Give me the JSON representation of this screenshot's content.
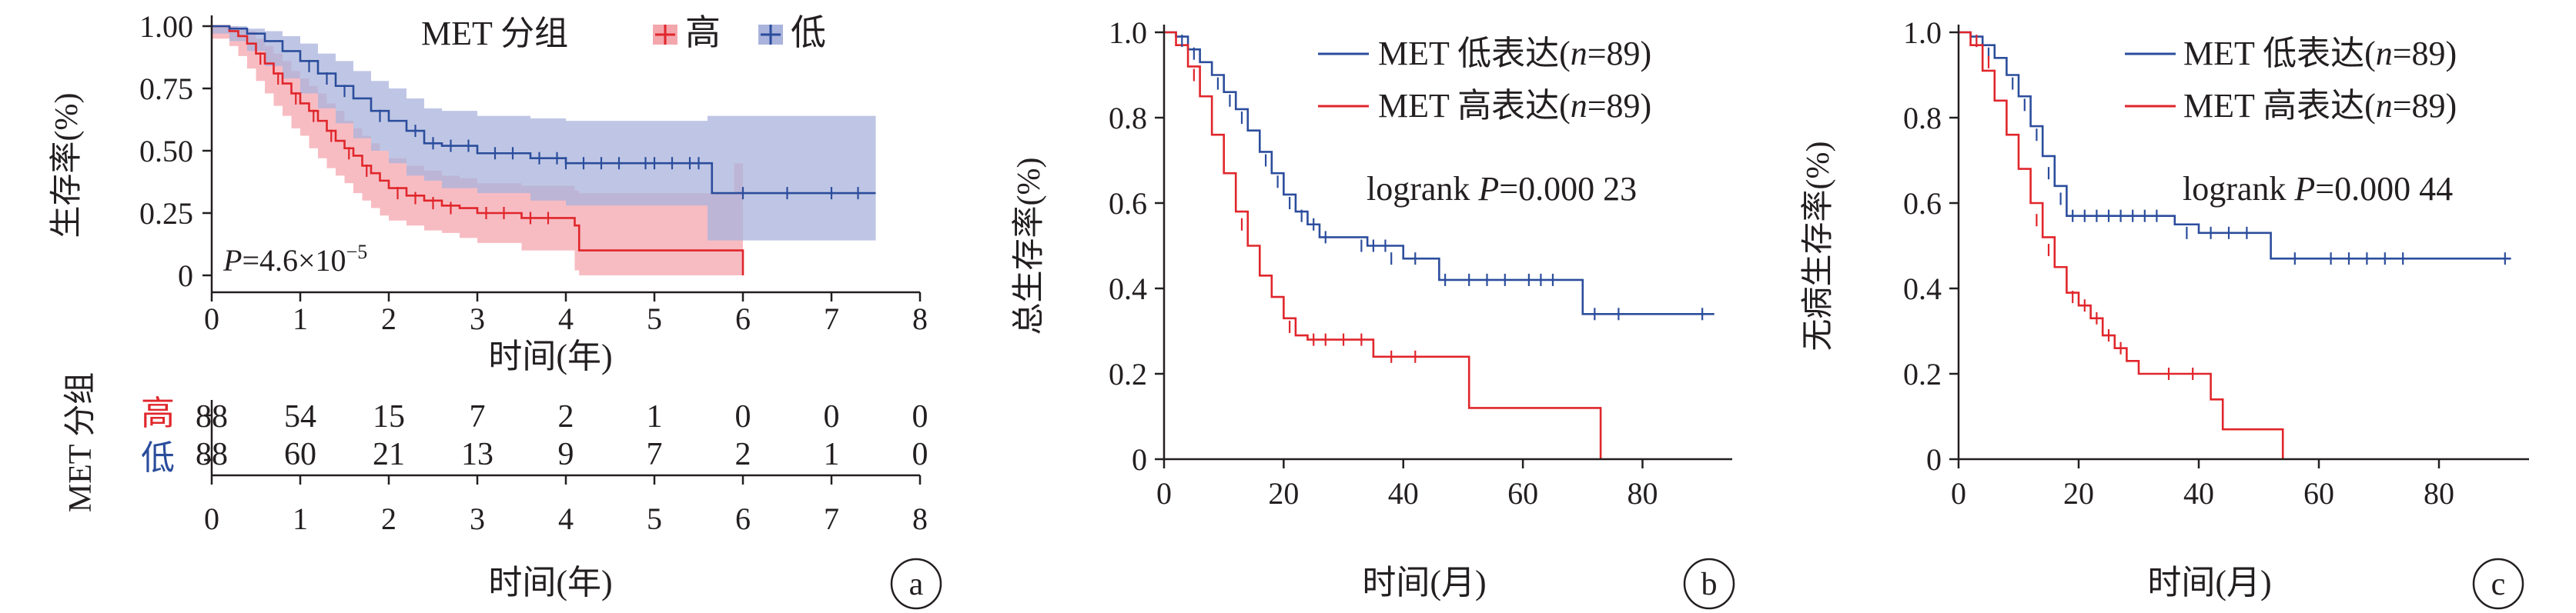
{
  "colors": {
    "high": "#e0262b",
    "low": "#2b4d9c",
    "high_band": "#f4a6ad",
    "low_band": "#a9b3dc",
    "axis": "#231f20"
  },
  "chart_data": [
    {
      "id": "a",
      "type": "line",
      "panel_label": "a",
      "ylabel": "生存率(%)",
      "xlabel": "时间(年)",
      "xlim": [
        0,
        8
      ],
      "ylim": [
        0,
        1
      ],
      "xticks": [
        "0",
        "1",
        "2",
        "3",
        "4",
        "5",
        "6",
        "7",
        "8"
      ],
      "yticks": [
        "0",
        "0.25",
        "0.50",
        "0.75",
        "1.00"
      ],
      "legend": {
        "title": "MET 分组",
        "placement": "top",
        "items": [
          "高",
          "低"
        ]
      },
      "annotation": {
        "prefix": "P",
        "text": "=4.6×10",
        "sup": "−5"
      },
      "series": [
        {
          "name": "高",
          "color_key": "high",
          "x": [
            0,
            0.2,
            0.3,
            0.4,
            0.5,
            0.6,
            0.7,
            0.8,
            0.9,
            1.0,
            1.1,
            1.2,
            1.3,
            1.4,
            1.5,
            1.6,
            1.7,
            1.8,
            1.9,
            2.0,
            2.2,
            2.4,
            2.6,
            2.8,
            3.0,
            3.5,
            4.1,
            4.15,
            5.9,
            6.0
          ],
          "y": [
            1,
            0.98,
            0.96,
            0.93,
            0.89,
            0.85,
            0.81,
            0.77,
            0.73,
            0.69,
            0.66,
            0.62,
            0.58,
            0.54,
            0.51,
            0.48,
            0.44,
            0.41,
            0.38,
            0.35,
            0.32,
            0.3,
            0.28,
            0.27,
            0.25,
            0.23,
            0.2,
            0.1,
            0.1,
            0.0
          ],
          "band_upper": [
            1,
            1,
            0.99,
            0.98,
            0.95,
            0.92,
            0.89,
            0.86,
            0.82,
            0.79,
            0.76,
            0.73,
            0.69,
            0.66,
            0.62,
            0.59,
            0.56,
            0.53,
            0.5,
            0.47,
            0.44,
            0.42,
            0.4,
            0.39,
            0.37,
            0.36,
            0.34,
            0.33,
            0.45,
            0.45
          ],
          "band_lower": [
            1,
            0.95,
            0.92,
            0.88,
            0.83,
            0.78,
            0.73,
            0.68,
            0.64,
            0.59,
            0.56,
            0.51,
            0.47,
            0.43,
            0.4,
            0.37,
            0.33,
            0.3,
            0.27,
            0.24,
            0.22,
            0.2,
            0.18,
            0.17,
            0.15,
            0.13,
            0.1,
            0.02,
            0.0,
            0.0
          ],
          "censor_x": [
            0.55,
            0.75,
            0.95,
            1.15,
            1.35,
            1.55,
            1.75,
            2.1,
            2.3,
            2.5,
            2.7,
            3.1,
            3.3,
            3.6,
            3.8
          ],
          "censor_y": [
            0.87,
            0.79,
            0.71,
            0.64,
            0.56,
            0.49,
            0.42,
            0.33,
            0.31,
            0.29,
            0.27,
            0.25,
            0.25,
            0.23,
            0.23
          ]
        },
        {
          "name": "低",
          "color_key": "low",
          "x": [
            0,
            0.2,
            0.4,
            0.6,
            0.8,
            1.0,
            1.2,
            1.4,
            1.6,
            1.8,
            2.0,
            2.2,
            2.4,
            2.6,
            3.0,
            3.6,
            4.0,
            5.6,
            5.65,
            7.5
          ],
          "y": [
            1,
            0.99,
            0.97,
            0.94,
            0.9,
            0.86,
            0.81,
            0.76,
            0.71,
            0.66,
            0.62,
            0.58,
            0.53,
            0.52,
            0.49,
            0.47,
            0.45,
            0.45,
            0.33,
            0.33
          ],
          "band_upper": [
            1,
            1,
            0.99,
            0.98,
            0.96,
            0.93,
            0.89,
            0.86,
            0.82,
            0.78,
            0.75,
            0.71,
            0.67,
            0.66,
            0.64,
            0.63,
            0.62,
            0.64,
            0.64,
            0.65
          ],
          "band_lower": [
            1,
            0.97,
            0.94,
            0.9,
            0.84,
            0.79,
            0.73,
            0.67,
            0.61,
            0.55,
            0.5,
            0.45,
            0.4,
            0.38,
            0.35,
            0.33,
            0.3,
            0.28,
            0.14,
            0.14
          ],
          "censor_x": [
            1.1,
            1.3,
            1.5,
            1.9,
            2.3,
            2.5,
            2.7,
            2.9,
            3.2,
            3.4,
            3.7,
            3.9,
            4.0,
            4.2,
            4.4,
            4.6,
            4.9,
            5.0,
            5.2,
            5.4,
            5.5,
            6.0,
            6.5,
            7.0,
            7.3
          ],
          "censor_y": [
            0.84,
            0.79,
            0.74,
            0.64,
            0.58,
            0.53,
            0.52,
            0.52,
            0.49,
            0.49,
            0.47,
            0.47,
            0.45,
            0.45,
            0.45,
            0.45,
            0.45,
            0.45,
            0.45,
            0.45,
            0.45,
            0.33,
            0.33,
            0.33,
            0.33
          ]
        }
      ],
      "risk_table": {
        "title": "MET 分组",
        "xlabel": "时间(年)",
        "rows": [
          {
            "label": "高",
            "color_key": "high",
            "values": [
              "88",
              "54",
              "15",
              "7",
              "2",
              "1",
              "0",
              "0",
              "0"
            ]
          },
          {
            "label": "低",
            "color_key": "low",
            "values": [
              "88",
              "60",
              "21",
              "13",
              "9",
              "7",
              "2",
              "1",
              "0"
            ]
          }
        ]
      }
    },
    {
      "id": "b",
      "type": "line",
      "panel_label": "b",
      "ylabel": "总生存率(%)",
      "xlabel": "时间(月)",
      "xlim": [
        0,
        95
      ],
      "ylim": [
        0,
        1.0
      ],
      "xticks": [
        "0",
        "20",
        "40",
        "60",
        "80"
      ],
      "yticks": [
        "0",
        "0.2",
        "0.4",
        "0.6",
        "0.8",
        "1.0"
      ],
      "annotation": {
        "prefix": "logrank ",
        "italic": "P",
        "text": "=0.000 23"
      },
      "series": [
        {
          "name": "MET 低表达(n=89)",
          "legend_prefix": "MET 低表达(",
          "legend_italic": "n",
          "legend_suffix": "=89)",
          "color_key": "low",
          "x": [
            0,
            2,
            4,
            6,
            8,
            10,
            12,
            14,
            16,
            18,
            20,
            22,
            24,
            26,
            30,
            34,
            40,
            46,
            50,
            60,
            68,
            70,
            92
          ],
          "y": [
            1,
            0.99,
            0.96,
            0.93,
            0.9,
            0.86,
            0.82,
            0.77,
            0.72,
            0.67,
            0.62,
            0.58,
            0.55,
            0.52,
            0.52,
            0.5,
            0.47,
            0.42,
            0.42,
            0.42,
            0.42,
            0.34,
            0.34
          ],
          "censor_x": [
            3,
            5,
            9,
            11,
            13,
            17,
            19,
            21,
            23,
            25,
            27,
            33,
            35,
            37,
            38,
            42,
            47,
            51,
            54,
            57,
            61,
            63,
            65,
            72,
            76,
            90
          ],
          "censor_y": [
            0.98,
            0.95,
            0.88,
            0.84,
            0.8,
            0.7,
            0.65,
            0.6,
            0.57,
            0.55,
            0.52,
            0.5,
            0.5,
            0.5,
            0.47,
            0.47,
            0.42,
            0.42,
            0.42,
            0.42,
            0.42,
            0.42,
            0.42,
            0.34,
            0.34,
            0.34
          ]
        },
        {
          "name": "MET 高表达(n=89)",
          "legend_prefix": "MET 高表达(",
          "legend_italic": "n",
          "legend_suffix": "=89)",
          "color_key": "high",
          "x": [
            0,
            2,
            4,
            6,
            8,
            10,
            12,
            14,
            16,
            18,
            20,
            22,
            24,
            26,
            30,
            35,
            38,
            44,
            51,
            60,
            73
          ],
          "y": [
            1,
            0.97,
            0.92,
            0.85,
            0.76,
            0.67,
            0.58,
            0.5,
            0.43,
            0.38,
            0.33,
            0.29,
            0.28,
            0.28,
            0.28,
            0.24,
            0.24,
            0.24,
            0.12,
            0.12,
            0.0
          ],
          "censor_x": [
            5,
            13,
            21,
            25,
            27,
            30,
            33,
            38,
            42
          ],
          "censor_y": [
            0.9,
            0.55,
            0.31,
            0.28,
            0.28,
            0.28,
            0.28,
            0.24,
            0.24
          ]
        }
      ]
    },
    {
      "id": "c",
      "type": "line",
      "panel_label": "c",
      "ylabel": "无病生存率(%)",
      "xlabel": "时间(月)",
      "xlim": [
        0,
        95
      ],
      "ylim": [
        0,
        1.0
      ],
      "xticks": [
        "0",
        "20",
        "40",
        "60",
        "80"
      ],
      "yticks": [
        "0",
        "0.2",
        "0.4",
        "0.6",
        "0.8",
        "1.0"
      ],
      "annotation": {
        "prefix": "logrank ",
        "italic": "P",
        "text": "=0.000 44"
      },
      "series": [
        {
          "name": "MET 低表达(n=89)",
          "legend_prefix": "MET 低表达(",
          "legend_italic": "n",
          "legend_suffix": "=89)",
          "color_key": "low",
          "x": [
            0,
            2,
            4,
            6,
            8,
            10,
            12,
            14,
            16,
            18,
            20,
            24,
            30,
            36,
            40,
            46,
            50,
            52,
            60,
            92
          ],
          "y": [
            1,
            0.99,
            0.97,
            0.94,
            0.9,
            0.85,
            0.78,
            0.71,
            0.64,
            0.57,
            0.57,
            0.57,
            0.57,
            0.55,
            0.53,
            0.53,
            0.53,
            0.47,
            0.47,
            0.47
          ],
          "censor_x": [
            3,
            5,
            9,
            11,
            13,
            15,
            17,
            19,
            21,
            23,
            25,
            27,
            29,
            31,
            33,
            38,
            42,
            45,
            48,
            56,
            62,
            65,
            68,
            71,
            74,
            91
          ],
          "censor_y": [
            0.98,
            0.95,
            0.88,
            0.83,
            0.76,
            0.67,
            0.61,
            0.57,
            0.57,
            0.57,
            0.57,
            0.57,
            0.57,
            0.57,
            0.57,
            0.53,
            0.53,
            0.53,
            0.53,
            0.47,
            0.47,
            0.47,
            0.47,
            0.47,
            0.47,
            0.47
          ]
        },
        {
          "name": "MET 高表达(n=89)",
          "legend_prefix": "MET 高表达(",
          "legend_italic": "n",
          "legend_suffix": "=89)",
          "color_key": "high",
          "x": [
            0,
            2,
            4,
            6,
            8,
            10,
            12,
            14,
            16,
            18,
            20,
            22,
            24,
            26,
            28,
            30,
            33,
            36,
            40,
            42,
            44,
            50,
            54
          ],
          "y": [
            1,
            0.97,
            0.91,
            0.84,
            0.76,
            0.68,
            0.6,
            0.52,
            0.45,
            0.39,
            0.36,
            0.33,
            0.29,
            0.26,
            0.23,
            0.2,
            0.2,
            0.2,
            0.2,
            0.14,
            0.07,
            0.07,
            0.0
          ],
          "censor_x": [
            3,
            5,
            13,
            15,
            19,
            21,
            23,
            25,
            27,
            35,
            39
          ],
          "censor_y": [
            0.98,
            0.93,
            0.56,
            0.49,
            0.38,
            0.36,
            0.33,
            0.29,
            0.26,
            0.2,
            0.2
          ]
        }
      ]
    }
  ]
}
